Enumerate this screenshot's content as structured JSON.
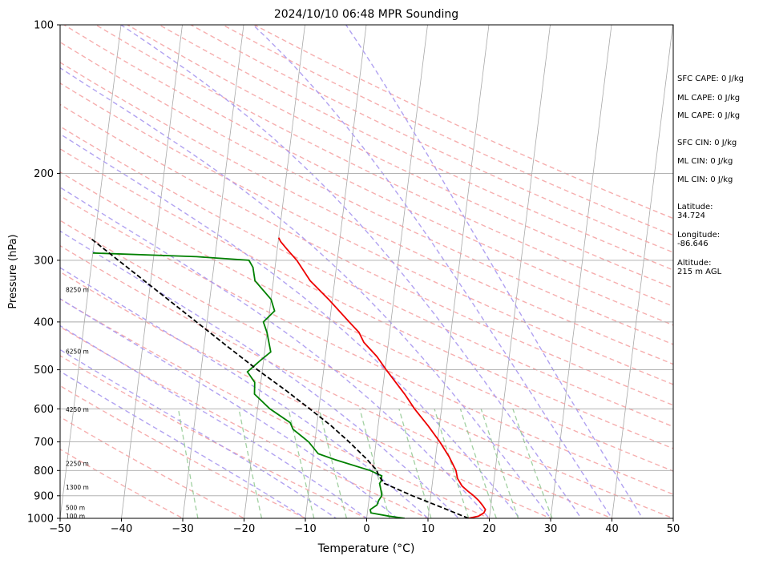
{
  "chart_data": {
    "type": "line",
    "title": "2024/10/10 06:48 MPR Sounding",
    "xlabel": "Temperature (°C)",
    "ylabel": "Pressure (hPa)",
    "xlim": [
      -50,
      50
    ],
    "ylim": [
      1000,
      100
    ],
    "y_scale": "log",
    "skew": "skew-T",
    "grid": true,
    "x_ticks": [
      -50,
      -40,
      -30,
      -20,
      -10,
      0,
      10,
      20,
      30,
      40,
      50
    ],
    "y_ticks": [
      1000,
      900,
      800,
      700,
      600,
      500,
      400,
      300,
      200,
      100
    ],
    "colors": {
      "temperature": "#ee0000",
      "dewpoint": "#008000",
      "parcel": "#000000",
      "dry_adiabats": "#f4a0a0",
      "moist_adiabats": "#a898f0",
      "mixing_ratio": "#90c890",
      "isotherms": "#a8a8a8"
    },
    "series": [
      {
        "key": "temperature",
        "points": [
          [
            1000,
            16.6
          ],
          [
            990,
            18.2
          ],
          [
            975,
            19.0
          ],
          [
            960,
            19.2
          ],
          [
            940,
            18.6
          ],
          [
            920,
            17.9
          ],
          [
            900,
            17.0
          ],
          [
            880,
            15.9
          ],
          [
            860,
            14.9
          ],
          [
            850,
            14.6
          ],
          [
            830,
            14.0
          ],
          [
            800,
            13.6
          ],
          [
            750,
            12.2
          ],
          [
            700,
            10.4
          ],
          [
            650,
            8.2
          ],
          [
            600,
            5.6
          ],
          [
            560,
            3.7
          ],
          [
            520,
            1.4
          ],
          [
            500,
            0.2
          ],
          [
            470,
            -1.6
          ],
          [
            440,
            -4.0
          ],
          [
            420,
            -5.0
          ],
          [
            400,
            -6.8
          ],
          [
            360,
            -10.6
          ],
          [
            330,
            -14.0
          ],
          [
            300,
            -16.6
          ],
          [
            285,
            -18.4
          ],
          [
            275,
            -19.6
          ],
          [
            270,
            -20.0
          ]
        ]
      },
      {
        "key": "dewpoint",
        "points": [
          [
            1000,
            6.2
          ],
          [
            990,
            3.6
          ],
          [
            975,
            0.6
          ],
          [
            960,
            0.4
          ],
          [
            940,
            1.4
          ],
          [
            920,
            1.6
          ],
          [
            900,
            2.0
          ],
          [
            880,
            1.8
          ],
          [
            850,
            1.4
          ],
          [
            840,
            1.6
          ],
          [
            820,
            1.6
          ],
          [
            800,
            -0.4
          ],
          [
            760,
            -6.4
          ],
          [
            740,
            -9.2
          ],
          [
            700,
            -11.0
          ],
          [
            660,
            -13.8
          ],
          [
            640,
            -14.4
          ],
          [
            600,
            -18.0
          ],
          [
            560,
            -20.8
          ],
          [
            530,
            -21.0
          ],
          [
            505,
            -22.4
          ],
          [
            480,
            -20.6
          ],
          [
            460,
            -19.0
          ],
          [
            420,
            -20.0
          ],
          [
            400,
            -20.8
          ],
          [
            380,
            -19.2
          ],
          [
            360,
            -20.0
          ],
          [
            330,
            -23.0
          ],
          [
            310,
            -23.6
          ],
          [
            300,
            -24.4
          ],
          [
            295,
            -33.0
          ],
          [
            290,
            -50.0
          ]
        ]
      },
      {
        "key": "parcel",
        "points": [
          [
            1000,
            16.6
          ],
          [
            950,
            12.0
          ],
          [
            900,
            7.0
          ],
          [
            850,
            2.2
          ],
          [
            820,
            1.1
          ],
          [
            800,
            0.7
          ],
          [
            760,
            -1.1
          ],
          [
            700,
            -4.4
          ],
          [
            650,
            -7.6
          ],
          [
            600,
            -11.5
          ],
          [
            550,
            -15.8
          ],
          [
            500,
            -20.8
          ],
          [
            450,
            -26.0
          ],
          [
            400,
            -31.7
          ],
          [
            350,
            -38.2
          ],
          [
            300,
            -45.7
          ],
          [
            270,
            -50.8
          ]
        ]
      }
    ],
    "height_labels": [
      {
        "text": "100 m",
        "p": 988
      },
      {
        "text": "500 m",
        "p": 951
      },
      {
        "text": "1300 m",
        "p": 864
      },
      {
        "text": "2250 m",
        "p": 774
      },
      {
        "text": "4250 m",
        "p": 601
      },
      {
        "text": "6250 m",
        "p": 459
      },
      {
        "text": "8250 m",
        "p": 344
      }
    ]
  },
  "indices": {
    "sfc_cape": "SFC CAPE: 0 J/kg",
    "ml_cape_1": "ML CAPE: 0 J/kg",
    "ml_cape_2": "ML CAPE: 0 J/kg",
    "sfc_cin": "SFC CIN: 0 J/kg",
    "ml_cin_1": "ML CIN: 0 J/kg",
    "ml_cin_2": "ML CIN: 0 J/kg",
    "latitude": "Latitude:\n34.724",
    "longitude": "Longitude:\n-86.646",
    "altitude": "Altitude:\n215 m AGL"
  }
}
